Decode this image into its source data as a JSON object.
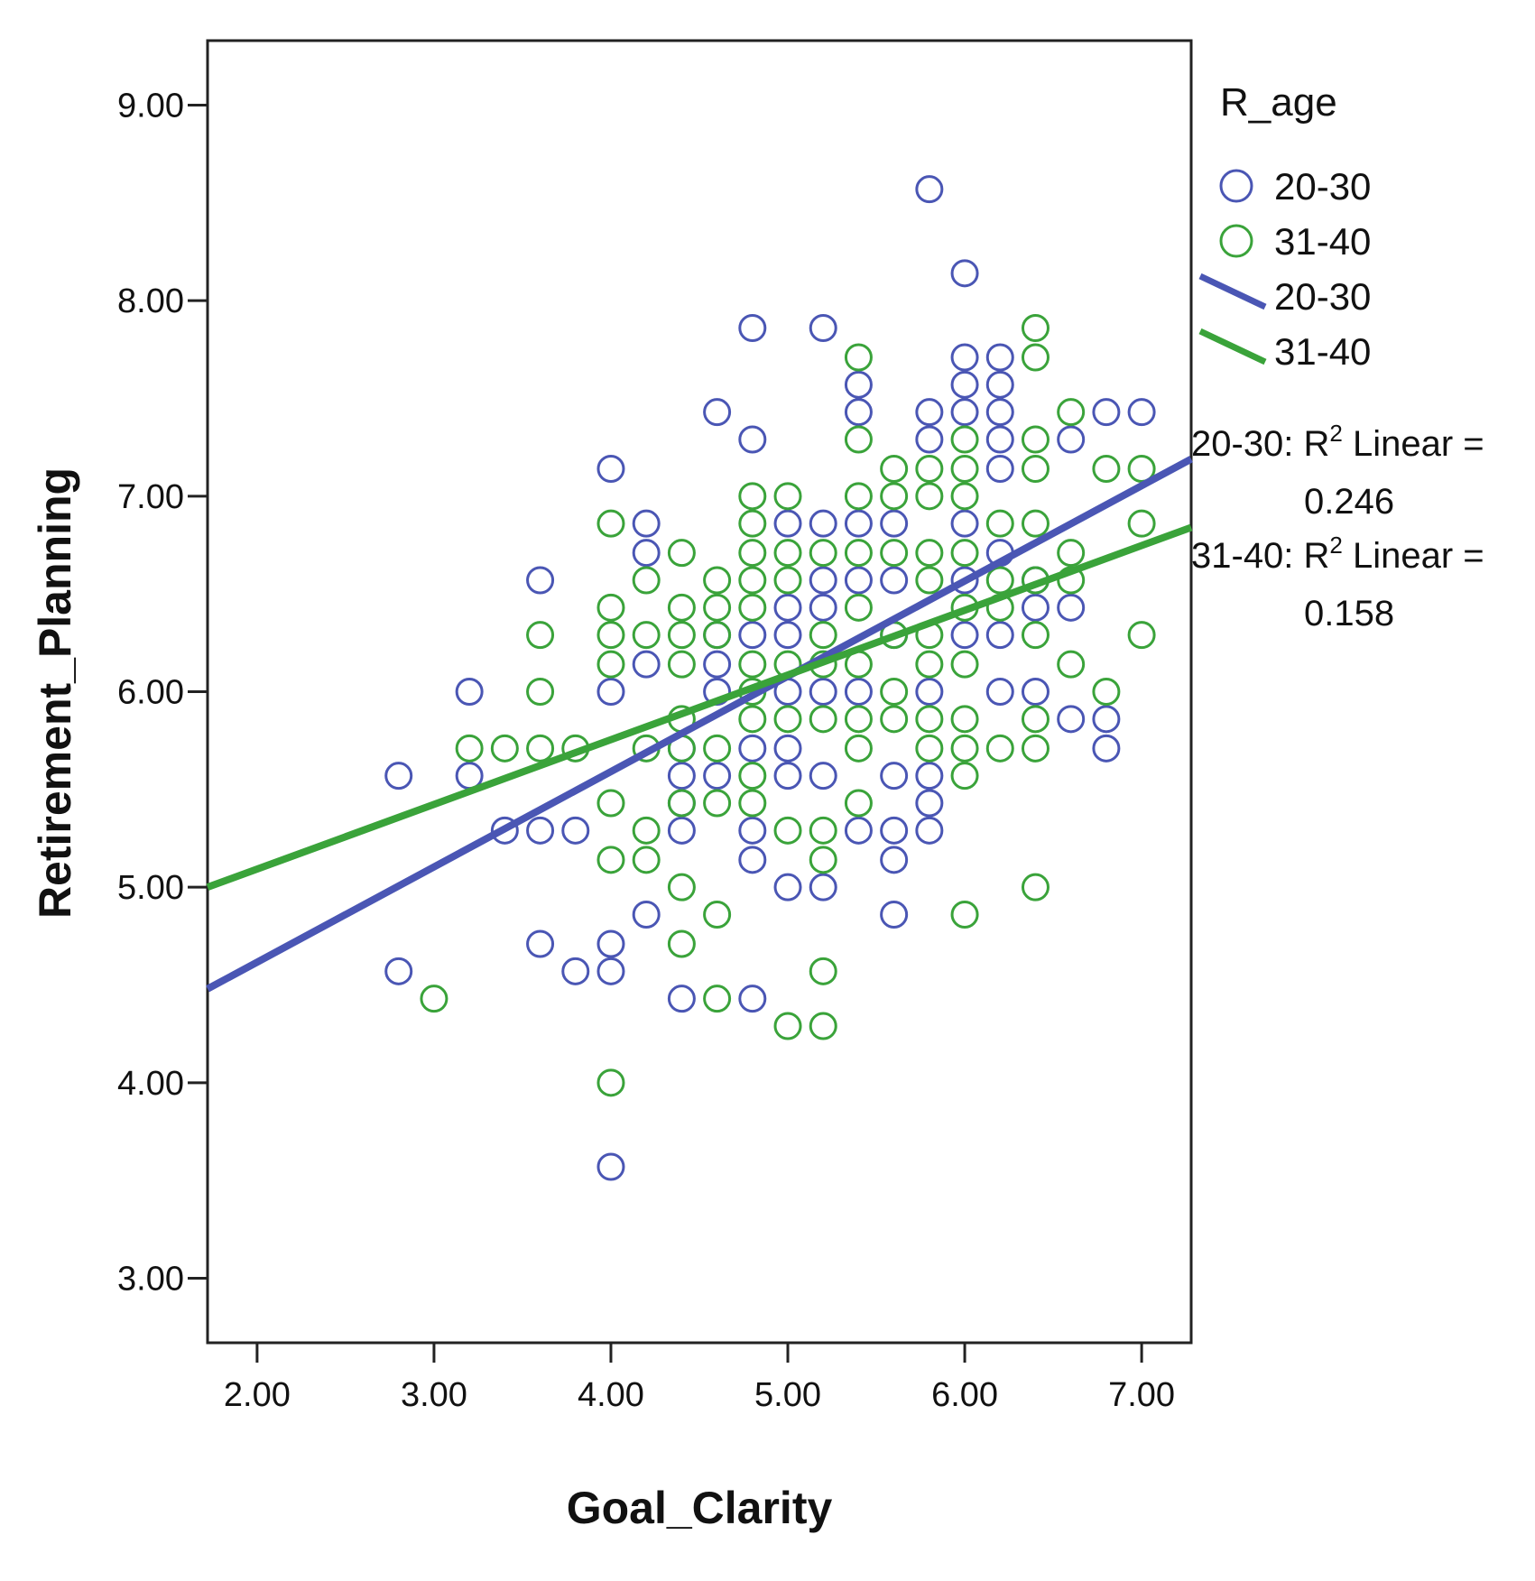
{
  "chart_data": {
    "type": "scatter",
    "xlabel": "Goal_Clarity",
    "ylabel": "Retirement_Planning",
    "xlim": [
      1.72,
      7.28
    ],
    "ylim": [
      2.67,
      9.33
    ],
    "x_ticks": [
      "2.00",
      "3.00",
      "4.00",
      "5.00",
      "6.00",
      "7.00"
    ],
    "y_ticks": [
      "3.00",
      "4.00",
      "5.00",
      "6.00",
      "7.00",
      "8.00",
      "9.00"
    ],
    "legend_title": "R_age",
    "legend_position": "right",
    "series": [
      {
        "name": "20-30",
        "color": "#4a56b4",
        "points": [
          [
            2.8,
            5.57
          ],
          [
            2.8,
            4.57
          ],
          [
            3.2,
            6.0
          ],
          [
            3.2,
            5.57
          ],
          [
            3.4,
            5.29
          ],
          [
            3.6,
            6.57
          ],
          [
            3.6,
            5.29
          ],
          [
            3.6,
            4.71
          ],
          [
            3.8,
            5.29
          ],
          [
            3.8,
            4.57
          ],
          [
            4.0,
            7.14
          ],
          [
            4.0,
            6.0
          ],
          [
            4.0,
            4.71
          ],
          [
            4.0,
            4.57
          ],
          [
            4.0,
            3.57
          ],
          [
            4.2,
            6.86
          ],
          [
            4.2,
            6.71
          ],
          [
            4.2,
            6.14
          ],
          [
            4.2,
            4.86
          ],
          [
            4.4,
            5.71
          ],
          [
            4.4,
            5.57
          ],
          [
            4.4,
            5.43
          ],
          [
            4.4,
            5.29
          ],
          [
            4.4,
            4.43
          ],
          [
            4.6,
            7.43
          ],
          [
            4.6,
            6.29
          ],
          [
            4.6,
            6.14
          ],
          [
            4.6,
            6.0
          ],
          [
            4.6,
            5.57
          ],
          [
            4.8,
            7.86
          ],
          [
            4.8,
            7.29
          ],
          [
            4.8,
            6.29
          ],
          [
            4.8,
            5.71
          ],
          [
            4.8,
            5.29
          ],
          [
            4.8,
            5.14
          ],
          [
            4.8,
            4.43
          ],
          [
            5.0,
            6.86
          ],
          [
            5.0,
            6.43
          ],
          [
            5.0,
            6.29
          ],
          [
            5.0,
            6.0
          ],
          [
            5.0,
            5.71
          ],
          [
            5.0,
            5.57
          ],
          [
            5.0,
            5.0
          ],
          [
            5.2,
            7.86
          ],
          [
            5.2,
            6.86
          ],
          [
            5.2,
            6.57
          ],
          [
            5.2,
            6.43
          ],
          [
            5.2,
            6.0
          ],
          [
            5.2,
            5.57
          ],
          [
            5.2,
            5.0
          ],
          [
            5.4,
            7.57
          ],
          [
            5.4,
            7.43
          ],
          [
            5.4,
            6.86
          ],
          [
            5.4,
            6.57
          ],
          [
            5.4,
            6.0
          ],
          [
            5.4,
            5.29
          ],
          [
            5.6,
            6.86
          ],
          [
            5.6,
            6.57
          ],
          [
            5.6,
            6.29
          ],
          [
            5.6,
            5.57
          ],
          [
            5.6,
            5.29
          ],
          [
            5.6,
            5.14
          ],
          [
            5.6,
            4.86
          ],
          [
            5.8,
            8.57
          ],
          [
            5.8,
            7.43
          ],
          [
            5.8,
            7.29
          ],
          [
            5.8,
            6.0
          ],
          [
            5.8,
            5.57
          ],
          [
            5.8,
            5.43
          ],
          [
            5.8,
            5.29
          ],
          [
            6.0,
            8.14
          ],
          [
            6.0,
            7.71
          ],
          [
            6.0,
            7.57
          ],
          [
            6.0,
            7.43
          ],
          [
            6.0,
            6.86
          ],
          [
            6.0,
            6.57
          ],
          [
            6.0,
            6.29
          ],
          [
            6.2,
            7.71
          ],
          [
            6.2,
            7.57
          ],
          [
            6.2,
            7.43
          ],
          [
            6.2,
            7.29
          ],
          [
            6.2,
            7.14
          ],
          [
            6.2,
            6.71
          ],
          [
            6.2,
            6.29
          ],
          [
            6.2,
            6.0
          ],
          [
            6.4,
            6.57
          ],
          [
            6.4,
            6.43
          ],
          [
            6.4,
            6.0
          ],
          [
            6.6,
            7.29
          ],
          [
            6.6,
            6.43
          ],
          [
            6.6,
            5.86
          ],
          [
            6.8,
            7.43
          ],
          [
            6.8,
            5.86
          ],
          [
            6.8,
            5.71
          ],
          [
            7.0,
            7.43
          ]
        ],
        "fit": {
          "x": [
            1.72,
            7.28
          ],
          "y": [
            4.48,
            7.19
          ]
        }
      },
      {
        "name": "31-40",
        "color": "#3aa33a",
        "points": [
          [
            3.0,
            4.43
          ],
          [
            3.2,
            5.71
          ],
          [
            3.4,
            5.71
          ],
          [
            3.6,
            6.29
          ],
          [
            3.6,
            6.0
          ],
          [
            3.6,
            5.71
          ],
          [
            3.8,
            5.71
          ],
          [
            4.0,
            6.86
          ],
          [
            4.0,
            6.43
          ],
          [
            4.0,
            6.29
          ],
          [
            4.0,
            6.14
          ],
          [
            4.0,
            5.43
          ],
          [
            4.0,
            5.14
          ],
          [
            4.0,
            4.0
          ],
          [
            4.2,
            6.57
          ],
          [
            4.2,
            6.29
          ],
          [
            4.2,
            5.71
          ],
          [
            4.2,
            5.29
          ],
          [
            4.2,
            5.14
          ],
          [
            4.4,
            6.71
          ],
          [
            4.4,
            6.43
          ],
          [
            4.4,
            6.29
          ],
          [
            4.4,
            6.14
          ],
          [
            4.4,
            5.86
          ],
          [
            4.4,
            5.71
          ],
          [
            4.4,
            5.43
          ],
          [
            4.4,
            5.0
          ],
          [
            4.4,
            4.71
          ],
          [
            4.6,
            6.57
          ],
          [
            4.6,
            6.43
          ],
          [
            4.6,
            6.29
          ],
          [
            4.6,
            5.71
          ],
          [
            4.6,
            5.43
          ],
          [
            4.6,
            4.86
          ],
          [
            4.6,
            4.43
          ],
          [
            4.8,
            7.0
          ],
          [
            4.8,
            6.86
          ],
          [
            4.8,
            6.71
          ],
          [
            4.8,
            6.57
          ],
          [
            4.8,
            6.43
          ],
          [
            4.8,
            6.14
          ],
          [
            4.8,
            6.0
          ],
          [
            4.8,
            5.86
          ],
          [
            4.8,
            5.57
          ],
          [
            4.8,
            5.43
          ],
          [
            5.0,
            7.0
          ],
          [
            5.0,
            6.71
          ],
          [
            5.0,
            6.57
          ],
          [
            5.0,
            6.14
          ],
          [
            5.0,
            5.86
          ],
          [
            5.0,
            5.29
          ],
          [
            5.0,
            4.29
          ],
          [
            5.2,
            6.71
          ],
          [
            5.2,
            6.29
          ],
          [
            5.2,
            6.14
          ],
          [
            5.2,
            5.86
          ],
          [
            5.2,
            5.29
          ],
          [
            5.2,
            5.14
          ],
          [
            5.2,
            4.57
          ],
          [
            5.2,
            4.29
          ],
          [
            5.4,
            7.71
          ],
          [
            5.4,
            7.29
          ],
          [
            5.4,
            7.0
          ],
          [
            5.4,
            6.71
          ],
          [
            5.4,
            6.43
          ],
          [
            5.4,
            6.14
          ],
          [
            5.4,
            5.86
          ],
          [
            5.4,
            5.71
          ],
          [
            5.4,
            5.43
          ],
          [
            5.6,
            7.14
          ],
          [
            5.6,
            7.0
          ],
          [
            5.6,
            6.71
          ],
          [
            5.6,
            6.29
          ],
          [
            5.6,
            6.0
          ],
          [
            5.6,
            5.86
          ],
          [
            5.8,
            7.14
          ],
          [
            5.8,
            7.0
          ],
          [
            5.8,
            6.71
          ],
          [
            5.8,
            6.57
          ],
          [
            5.8,
            6.29
          ],
          [
            5.8,
            6.14
          ],
          [
            5.8,
            5.86
          ],
          [
            5.8,
            5.71
          ],
          [
            6.0,
            7.29
          ],
          [
            6.0,
            7.14
          ],
          [
            6.0,
            7.0
          ],
          [
            6.0,
            6.71
          ],
          [
            6.0,
            6.43
          ],
          [
            6.0,
            6.14
          ],
          [
            6.0,
            5.86
          ],
          [
            6.0,
            5.71
          ],
          [
            6.0,
            5.57
          ],
          [
            6.0,
            4.86
          ],
          [
            6.2,
            6.86
          ],
          [
            6.2,
            6.57
          ],
          [
            6.2,
            6.43
          ],
          [
            6.2,
            5.71
          ],
          [
            6.4,
            7.86
          ],
          [
            6.4,
            7.71
          ],
          [
            6.4,
            7.29
          ],
          [
            6.4,
            7.14
          ],
          [
            6.4,
            6.86
          ],
          [
            6.4,
            6.57
          ],
          [
            6.4,
            6.29
          ],
          [
            6.4,
            5.86
          ],
          [
            6.4,
            5.71
          ],
          [
            6.4,
            5.0
          ],
          [
            6.6,
            7.43
          ],
          [
            6.6,
            6.71
          ],
          [
            6.6,
            6.57
          ],
          [
            6.6,
            6.14
          ],
          [
            6.8,
            7.14
          ],
          [
            6.8,
            6.0
          ],
          [
            7.0,
            7.14
          ],
          [
            7.0,
            6.86
          ],
          [
            7.0,
            6.29
          ]
        ],
        "fit": {
          "x": [
            1.72,
            7.28
          ],
          "y": [
            5.0,
            6.84
          ]
        }
      }
    ],
    "legend_items": [
      {
        "label": "20-30",
        "kind": "marker",
        "color": "#4a56b4"
      },
      {
        "label": "31-40",
        "kind": "marker",
        "color": "#3aa33a"
      },
      {
        "label": "20-30",
        "kind": "line",
        "color": "#4a56b4"
      },
      {
        "label": "31-40",
        "kind": "line",
        "color": "#3aa33a"
      }
    ],
    "annotations": [
      {
        "group": "20-30",
        "prefix": "20-30: R",
        "sup": "2",
        "suffix": " Linear =",
        "value": "0.246"
      },
      {
        "group": "31-40",
        "prefix": "31-40: R",
        "sup": "2",
        "suffix": " Linear =",
        "value": "0.158"
      }
    ]
  }
}
